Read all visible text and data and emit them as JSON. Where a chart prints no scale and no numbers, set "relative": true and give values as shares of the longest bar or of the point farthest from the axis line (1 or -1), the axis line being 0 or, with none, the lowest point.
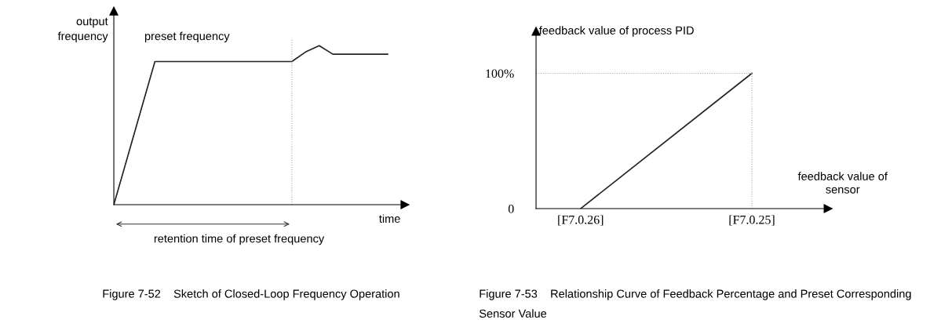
{
  "chart_data": [
    {
      "type": "line",
      "relative": true,
      "title": "Figure 7-52    Sketch of Closed-Loop Frequency Operation",
      "xlabel": "time",
      "ylabel": "output\nfrequency",
      "tick_labels": false,
      "categories": [
        null,
        null,
        null,
        null,
        null,
        null,
        null,
        null,
        null,
        null,
        null,
        null,
        null,
        null,
        null,
        null,
        null,
        null,
        null,
        null,
        null
      ],
      "series": [
        {
          "color": "#222222",
          "values": [
            0,
            0.3,
            0.6,
            0.9,
            0.9,
            0.9,
            0.9,
            0.9,
            0.9,
            0.9,
            0.9,
            0.9,
            0.9,
            0.9,
            0.96,
            1.0,
            0.946,
            0.946,
            0.946,
            0.946,
            0.946
          ]
        }
      ],
      "annotations": [
        "preset frequency",
        "retention time of preset frequency"
      ]
    },
    {
      "type": "line",
      "title": "Figure 7-53    Relationship Curve of Feedback Percentage and Preset Corresponding Sensor Value",
      "xlabel": "feedback value of\nsensor",
      "ylabel": "feedback value of process PID",
      "categories": [
        "[F7.0.26]",
        "[F7.0.25]"
      ],
      "series": [
        {
          "color": "#222222",
          "values": [
            0,
            100
          ]
        }
      ],
      "ylim": [
        0,
        131
      ],
      "yticks": [
        0,
        {
          "value": 100,
          "label": "100%"
        }
      ],
      "ref_lines": [
        {
          "axis": "y",
          "value": 100,
          "color": "#aaaaaa",
          "line_style": "dotted"
        }
      ]
    }
  ]
}
